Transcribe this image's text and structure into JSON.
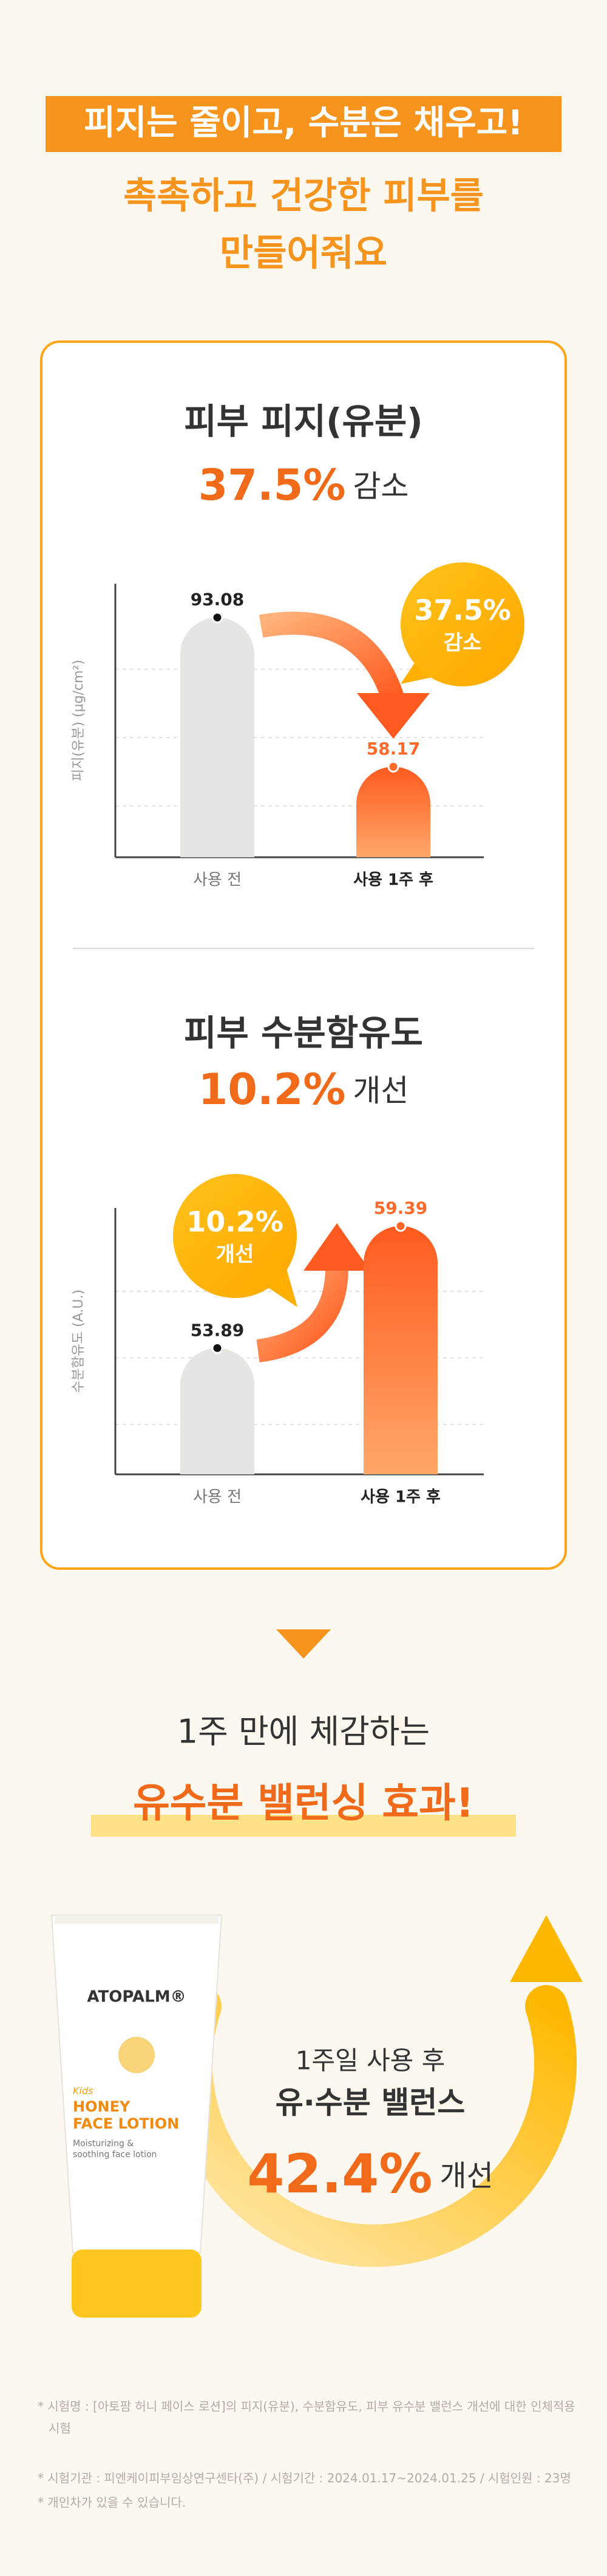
{
  "header": {
    "banner": "피지는 줄이고, 수분은 채우고!",
    "line1": "촉촉하고 건강한 피부를",
    "line2": "만들어줘요"
  },
  "chart_data": [
    {
      "type": "bar",
      "title": "피부 피지(유분)",
      "change_label": "37.5%",
      "change_word": "감소",
      "y_label": "피지(유분) (μg/cm²)",
      "categories": [
        "사용 전",
        "사용 1주 후"
      ],
      "values": [
        93.08,
        58.17
      ],
      "colors": [
        "#e7e5e2",
        "#ff6a2b"
      ],
      "ylim": [
        37,
        101
      ],
      "grid": true
    },
    {
      "type": "bar",
      "title": "피부 수분함유도",
      "change_label": "10.2%",
      "change_word": "개선",
      "y_label": "수분함유도 (A.U.)",
      "categories": [
        "사용 전",
        "사용 1주 후"
      ],
      "values": [
        53.89,
        59.39
      ],
      "colors": [
        "#e7e5e2",
        "#ff6a2b"
      ],
      "ylim": [
        48.2,
        60.2
      ],
      "grid": true
    }
  ],
  "effect": {
    "line1": "1주 만에 체감하는",
    "line2": "유수분 밸런싱 효과!"
  },
  "product": {
    "brand": "ATOPALM®",
    "kids": "Kids",
    "name1": "HONEY",
    "name2": "FACE LOTION",
    "desc1": "Moisturizing &",
    "desc2": "soothing face lotion"
  },
  "balance": {
    "line1": "1주일 사용 후",
    "line2": "유·수분 밸런스",
    "change_label": "42.4%",
    "change_word": "개선"
  },
  "footnotes": [
    "* 시험명 : [아토팜 허니 페이스 로션]의 피지(유분), 수분함유도, 피부 유수분 밸런스 개선에 대한 인체적용시험",
    "* 시험기관 : 피엔케이피부임상연구센타(주) / 시험기간 : 2024.01.17~2024.01.25 / 시험인원 : 23명",
    "* 개인차가 있을 수 있습니다."
  ]
}
